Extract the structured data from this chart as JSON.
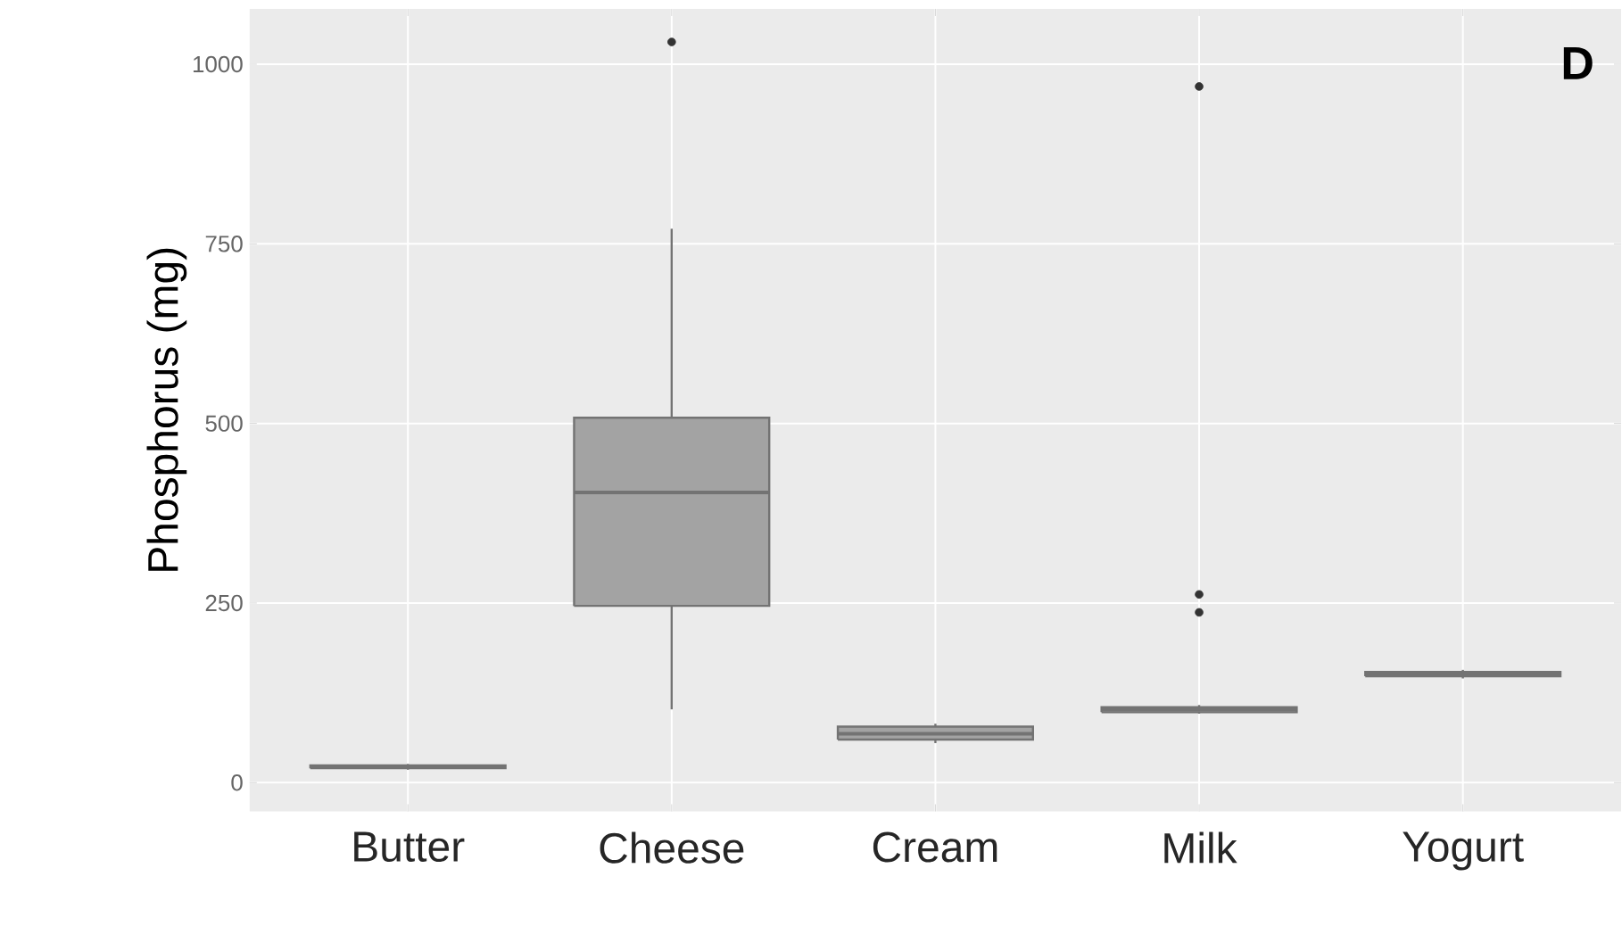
{
  "chart_data": {
    "type": "box",
    "ylabel": "Phosphorus (mg)",
    "annotations": [
      "D"
    ],
    "categories": [
      "Butter",
      "Cheese",
      "Cream",
      "Milk",
      "Yogurt"
    ],
    "boxes": [
      {
        "low": 18,
        "q1": 20,
        "median": 22,
        "q3": 24,
        "high": 26
      },
      {
        "low": 102,
        "q1": 246,
        "median": 404,
        "q3": 508,
        "high": 771,
        "outliers": [
          1031
        ]
      },
      {
        "low": 55,
        "q1": 60,
        "median": 68,
        "q3": 78,
        "high": 82
      },
      {
        "low": 96,
        "q1": 98,
        "median": 102,
        "q3": 105,
        "high": 108,
        "outliers": [
          237,
          262,
          969
        ]
      },
      {
        "low": 145,
        "q1": 148,
        "median": 151,
        "q3": 154,
        "high": 157
      }
    ],
    "color": "#a3a3a3",
    "ylim": [
      -40,
      1077
    ],
    "yticks": [
      0,
      250,
      500,
      750,
      1000
    ],
    "grid": true
  }
}
